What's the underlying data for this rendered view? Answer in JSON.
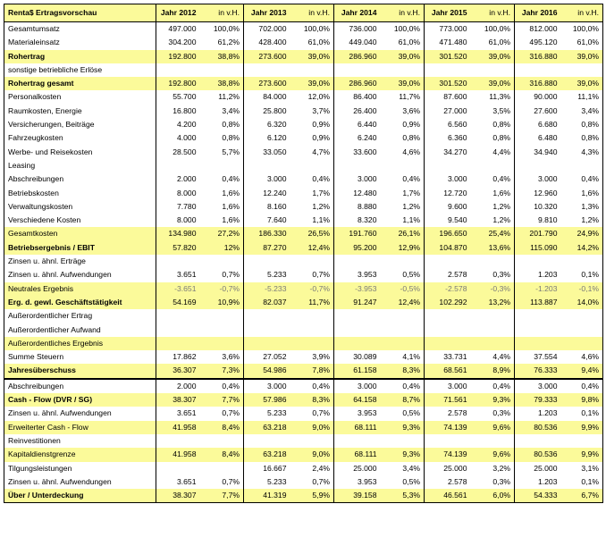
{
  "header": {
    "title": "Renta$ Ertragsvorschau",
    "years": [
      "Jahr 2012",
      "Jahr 2013",
      "Jahr 2014",
      "Jahr 2015",
      "Jahr 2016"
    ],
    "pct_label": "in v.H."
  },
  "rows": [
    {
      "label": "Gesamtumsatz",
      "hl": false,
      "bold": false,
      "cells": [
        "497.000",
        "100,0%",
        "702.000",
        "100,0%",
        "736.000",
        "100,0%",
        "773.000",
        "100,0%",
        "812.000",
        "100,0%"
      ]
    },
    {
      "label": "Materialeinsatz",
      "hl": false,
      "bold": false,
      "cells": [
        "304.200",
        "61,2%",
        "428.400",
        "61,0%",
        "449.040",
        "61,0%",
        "471.480",
        "61,0%",
        "495.120",
        "61,0%"
      ]
    },
    {
      "label": "Rohertrag",
      "hl": true,
      "bold": true,
      "cells": [
        "192.800",
        "38,8%",
        "273.600",
        "39,0%",
        "286.960",
        "39,0%",
        "301.520",
        "39,0%",
        "316.880",
        "39,0%"
      ]
    },
    {
      "label": "sonstige betriebliche Erlöse",
      "hl": false,
      "bold": false,
      "cells": [
        "",
        "",
        "",
        "",
        "",
        "",
        "",
        "",
        "",
        ""
      ]
    },
    {
      "label": "Rohertrag gesamt",
      "hl": true,
      "bold": true,
      "cells": [
        "192.800",
        "38,8%",
        "273.600",
        "39,0%",
        "286.960",
        "39,0%",
        "301.520",
        "39,0%",
        "316.880",
        "39,0%"
      ]
    },
    {
      "label": "Personalkosten",
      "hl": false,
      "bold": false,
      "cells": [
        "55.700",
        "11,2%",
        "84.000",
        "12,0%",
        "86.400",
        "11,7%",
        "87.600",
        "11,3%",
        "90.000",
        "11,1%"
      ]
    },
    {
      "label": "Raumkosten, Energie",
      "hl": false,
      "bold": false,
      "cells": [
        "16.800",
        "3,4%",
        "25.800",
        "3,7%",
        "26.400",
        "3,6%",
        "27.000",
        "3,5%",
        "27.600",
        "3,4%"
      ]
    },
    {
      "label": "Versicherungen, Beiträge",
      "hl": false,
      "bold": false,
      "cells": [
        "4.200",
        "0,8%",
        "6.320",
        "0,9%",
        "6.440",
        "0,9%",
        "6.560",
        "0,8%",
        "6.680",
        "0,8%"
      ]
    },
    {
      "label": "Fahrzeugkosten",
      "hl": false,
      "bold": false,
      "cells": [
        "4.000",
        "0,8%",
        "6.120",
        "0,9%",
        "6.240",
        "0,8%",
        "6.360",
        "0,8%",
        "6.480",
        "0,8%"
      ]
    },
    {
      "label": "Werbe- und Reisekosten",
      "hl": false,
      "bold": false,
      "cells": [
        "28.500",
        "5,7%",
        "33.050",
        "4,7%",
        "33.600",
        "4,6%",
        "34.270",
        "4,4%",
        "34.940",
        "4,3%"
      ]
    },
    {
      "label": "Leasing",
      "hl": false,
      "bold": false,
      "cells": [
        "",
        "",
        "",
        "",
        "",
        "",
        "",
        "",
        "",
        ""
      ]
    },
    {
      "label": "Abschreibungen",
      "hl": false,
      "bold": false,
      "cells": [
        "2.000",
        "0,4%",
        "3.000",
        "0,4%",
        "3.000",
        "0,4%",
        "3.000",
        "0,4%",
        "3.000",
        "0,4%"
      ]
    },
    {
      "label": "Betriebskosten",
      "hl": false,
      "bold": false,
      "cells": [
        "8.000",
        "1,6%",
        "12.240",
        "1,7%",
        "12.480",
        "1,7%",
        "12.720",
        "1,6%",
        "12.960",
        "1,6%"
      ]
    },
    {
      "label": "Verwaltungskosten",
      "hl": false,
      "bold": false,
      "cells": [
        "7.780",
        "1,6%",
        "8.160",
        "1,2%",
        "8.880",
        "1,2%",
        "9.600",
        "1,2%",
        "10.320",
        "1,3%"
      ]
    },
    {
      "label": "Verschiedene Kosten",
      "hl": false,
      "bold": false,
      "cells": [
        "8.000",
        "1,6%",
        "7.640",
        "1,1%",
        "8.320",
        "1,1%",
        "9.540",
        "1,2%",
        "9.810",
        "1,2%"
      ]
    },
    {
      "label": "Gesamtkosten",
      "hl": true,
      "bold": false,
      "cells": [
        "134.980",
        "27,2%",
        "186.330",
        "26,5%",
        "191.760",
        "26,1%",
        "196.650",
        "25,4%",
        "201.790",
        "24,9%"
      ]
    },
    {
      "label": "Betriebsergebnis / EBIT",
      "hl": true,
      "bold": true,
      "cells": [
        "57.820",
        "12%",
        "87.270",
        "12,4%",
        "95.200",
        "12,9%",
        "104.870",
        "13,6%",
        "115.090",
        "14,2%"
      ]
    },
    {
      "label": "Zinsen u. ähnl. Erträge",
      "hl": false,
      "bold": false,
      "cells": [
        "",
        "",
        "",
        "",
        "",
        "",
        "",
        "",
        "",
        ""
      ]
    },
    {
      "label": "Zinsen u. ähnl. Aufwendungen",
      "hl": false,
      "bold": false,
      "cells": [
        "3.651",
        "0,7%",
        "5.233",
        "0,7%",
        "3.953",
        "0,5%",
        "2.578",
        "0,3%",
        "1.203",
        "0,1%"
      ]
    },
    {
      "label": "Neutrales Ergebnis",
      "hl": true,
      "bold": false,
      "neg": true,
      "cells": [
        "-3.651",
        "-0,7%",
        "-5.233",
        "-0,7%",
        "-3.953",
        "-0,5%",
        "-2.578",
        "-0,3%",
        "-1.203",
        "-0,1%"
      ]
    },
    {
      "label": "Erg. d. gewl. Geschäftstätigkeit",
      "hl": true,
      "bold": true,
      "cells": [
        "54.169",
        "10,9%",
        "82.037",
        "11,7%",
        "91.247",
        "12,4%",
        "102.292",
        "13,2%",
        "113.887",
        "14,0%"
      ]
    },
    {
      "label": "Außerordentlicher Ertrag",
      "hl": false,
      "bold": false,
      "cells": [
        "",
        "",
        "",
        "",
        "",
        "",
        "",
        "",
        "",
        ""
      ]
    },
    {
      "label": "Außerordentlicher Aufwand",
      "hl": false,
      "bold": false,
      "cells": [
        "",
        "",
        "",
        "",
        "",
        "",
        "",
        "",
        "",
        ""
      ]
    },
    {
      "label": "Außerordentliches Ergebnis",
      "hl": true,
      "bold": false,
      "cells": [
        "",
        "",
        "",
        "",
        "",
        "",
        "",
        "",
        "",
        ""
      ]
    },
    {
      "label": "Summe Steuern",
      "hl": false,
      "bold": false,
      "cells": [
        "17.862",
        "3,6%",
        "27.052",
        "3,9%",
        "30.089",
        "4,1%",
        "33.731",
        "4,4%",
        "37.554",
        "4,6%"
      ]
    },
    {
      "label": "Jahresüberschuss",
      "hl": true,
      "bold": true,
      "cells": [
        "36.307",
        "7,3%",
        "54.986",
        "7,8%",
        "61.158",
        "8,3%",
        "68.561",
        "8,9%",
        "76.333",
        "9,4%"
      ]
    },
    {
      "label": "Abschreibungen",
      "hl": false,
      "bold": false,
      "sep": true,
      "cells": [
        "2.000",
        "0,4%",
        "3.000",
        "0,4%",
        "3.000",
        "0,4%",
        "3.000",
        "0,4%",
        "3.000",
        "0,4%"
      ]
    },
    {
      "label": "Cash - Flow (DVR / SG)",
      "hl": true,
      "bold": true,
      "cells": [
        "38.307",
        "7,7%",
        "57.986",
        "8,3%",
        "64.158",
        "8,7%",
        "71.561",
        "9,3%",
        "79.333",
        "9,8%"
      ]
    },
    {
      "label": "Zinsen u. ähnl. Aufwendungen",
      "hl": false,
      "bold": false,
      "cells": [
        "3.651",
        "0,7%",
        "5.233",
        "0,7%",
        "3.953",
        "0,5%",
        "2.578",
        "0,3%",
        "1.203",
        "0,1%"
      ]
    },
    {
      "label": "Erweiterter Cash - Flow",
      "hl": true,
      "bold": false,
      "cells": [
        "41.958",
        "8,4%",
        "63.218",
        "9,0%",
        "68.111",
        "9,3%",
        "74.139",
        "9,6%",
        "80.536",
        "9,9%"
      ]
    },
    {
      "label": "Reinvestitionen",
      "hl": false,
      "bold": false,
      "cells": [
        "",
        "",
        "",
        "",
        "",
        "",
        "",
        "",
        "",
        ""
      ]
    },
    {
      "label": "Kapitaldienstgrenze",
      "hl": true,
      "bold": false,
      "cells": [
        "41.958",
        "8,4%",
        "63.218",
        "9,0%",
        "68.111",
        "9,3%",
        "74.139",
        "9,6%",
        "80.536",
        "9,9%"
      ]
    },
    {
      "label": "Tilgungsleistungen",
      "hl": false,
      "bold": false,
      "cells": [
        "",
        "",
        "16.667",
        "2,4%",
        "25.000",
        "3,4%",
        "25.000",
        "3,2%",
        "25.000",
        "3,1%"
      ]
    },
    {
      "label": "Zinsen u. ähnl. Aufwendungen",
      "hl": false,
      "bold": false,
      "cells": [
        "3.651",
        "0,7%",
        "5.233",
        "0,7%",
        "3.953",
        "0,5%",
        "2.578",
        "0,3%",
        "1.203",
        "0,1%"
      ]
    },
    {
      "label": "Über / Unterdeckung",
      "hl": true,
      "bold": true,
      "cells": [
        "38.307",
        "7,7%",
        "41.319",
        "5,9%",
        "39.158",
        "5,3%",
        "46.561",
        "6,0%",
        "54.333",
        "6,7%"
      ]
    }
  ]
}
